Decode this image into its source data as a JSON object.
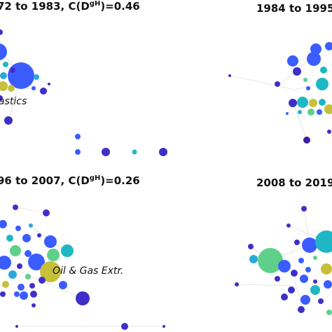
{
  "panels": [
    {
      "title_prefix": "72 to 1983, C(D",
      "title_sup": "gH",
      "title_suffix": ")=0.46",
      "annotation": "astics"
    },
    {
      "title_prefix": "1984 to 1995",
      "title_sup": "",
      "title_suffix": "",
      "annotation": ""
    },
    {
      "title_prefix": "96 to 2007, C(D",
      "title_sup": "gH",
      "title_suffix": ")=0.26",
      "annotation": "Oil & Gas Extr."
    },
    {
      "title_prefix": "2008 to 2019",
      "title_sup": "",
      "title_suffix": "",
      "annotation": ""
    }
  ],
  "colors": {
    "blue": "#3b5cff",
    "indigo": "#3f2fc8",
    "navy": "#3a1f9a",
    "teal": "#1fb7c4",
    "cyan": "#28a9d8",
    "green": "#5fd08a",
    "olive": "#c6c03a",
    "edge": "#c9c9c9"
  }
}
